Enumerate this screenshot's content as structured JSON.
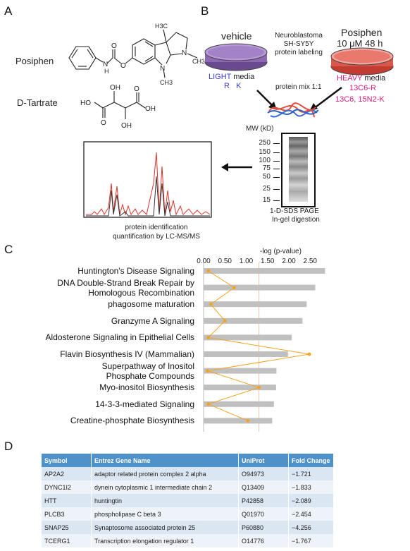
{
  "panels": {
    "a": "A",
    "b": "B",
    "c": "C",
    "d": "D"
  },
  "panelA": {
    "posiphen_label": "Posiphen",
    "tartrate_label": "D-Tartrate",
    "posiphen_atoms": {
      "h3c": "H3C",
      "n1": "N",
      "ch3a": "CH3",
      "n2": "N",
      "ch3b": "CH3",
      "nh": "N",
      "h": "H",
      "o": "O"
    },
    "tartrate_atoms": {
      "oh_top": "OH",
      "oh_bottom": "OH",
      "ho_left": "HO",
      "oh_right": "OH",
      "o_top": "O",
      "o_bottom": "O"
    }
  },
  "panelB": {
    "vehicle": "vehicle",
    "neuroblastoma": "Neuroblastoma\nSH-SY5Y\nprotein labeling",
    "posiphen": "Posiphen",
    "dose": "10 μM 48 h",
    "light_media": "LIGHT",
    "media_suffix": "media",
    "light_aa": "R   K",
    "heavy_media": "HEAVY",
    "heavy_r": "13C6-R",
    "heavy_k": "13C6, 15N2-K",
    "protein_mix": "protein mix 1:1",
    "mw_label": "MW (kD)",
    "mw_markers": [
      "250",
      "150",
      "100",
      "75",
      "50",
      "25",
      "15"
    ],
    "sds_label": "1-D-SDS PAGE",
    "digest_label": "In-gel digestion",
    "ms_label": "protein identification\nquantification by LC-MS/MS"
  },
  "chart_data": {
    "type": "bar",
    "title": "",
    "xlabel": "-log (p-value)",
    "ylabel": "",
    "xlim": [
      0,
      2.9
    ],
    "xticks": [
      "0.00",
      "0.50",
      "1.00",
      "1.50",
      "2.00",
      "2.50"
    ],
    "threshold": 1.3,
    "categories": [
      "Huntington's Disease Signaling",
      "DNA Double-Strand Break Repair by\nHomologous Recombination",
      "phagosome maturation",
      "Granzyme A Signaling",
      "Aldosterone Signaling in Epithelial Cells",
      "Flavin Biosynthesis IV (Mammalian)",
      "Superpathway of Inositol\nPhosphate Compounds",
      "Myo-inositol Biosynthesis",
      "14-3-3-mediated Signaling",
      "Creatine-phosphate Biosynthesis"
    ],
    "series": [
      {
        "values": [
          2.85,
          2.62,
          2.42,
          2.32,
          2.07,
          1.98,
          1.71,
          1.7,
          1.65,
          1.61
        ]
      },
      {
        "values": [
          0.11,
          0.72,
          0.17,
          0.5,
          0.11,
          2.48,
          0.09,
          1.3,
          0.11,
          1.04
        ]
      }
    ],
    "colors": {
      "bar": "#c0c0c0",
      "ratio": "#f4a321",
      "threshold": "#f3c2a2"
    }
  },
  "table": {
    "headers": [
      "Symbol",
      "Entrez Gene Name",
      "UniProt",
      "Fold Change"
    ],
    "rows": [
      [
        "AP2A2",
        "adaptor related protein complex 2 alpha",
        "O94973",
        "−1.721"
      ],
      [
        "DYNC1I2",
        "dynein cytoplasmic 1 intermediate chain 2",
        "Q13409",
        "−1.833"
      ],
      [
        "HTT",
        "huntingtin",
        "P42858",
        "−2.089"
      ],
      [
        "PLCB3",
        "phospholipase C beta 3",
        "Q01970",
        "−2.454"
      ],
      [
        "SNAP25",
        "Synaptosome associated protein 25",
        "P60880",
        "−4.256"
      ],
      [
        "TCERG1",
        "Transcription elongation regulator 1",
        "O14776",
        "−1.767"
      ]
    ]
  }
}
